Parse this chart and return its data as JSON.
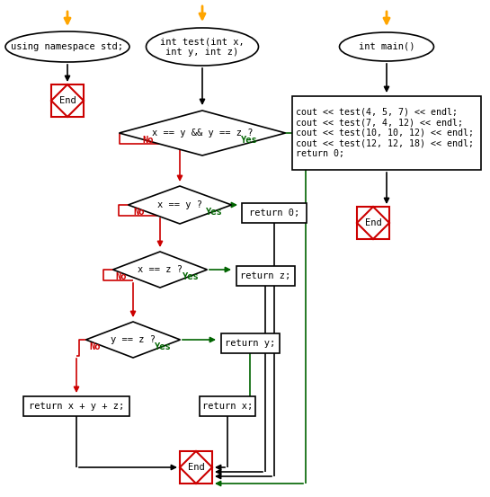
{
  "bg_color": "#ffffff",
  "arrow_color_orange": "#FFA500",
  "arrow_color_black": "#000000",
  "arrow_color_red": "#cc0000",
  "arrow_color_green": "#006400",
  "node_fill_white": "#ffffff",
  "node_border_black": "#000000",
  "end_border_red": "#cc0000",
  "text_color": "#000000",
  "label_no_color": "#cc0000",
  "label_yes_color": "#006400",
  "left_oval_text": "using namespace std;",
  "center_oval_text": "int test(int x,\nint y, int z)",
  "right_oval_text": "int main()",
  "decision1_text": "x == y && y == z ?",
  "decision2_text": "x == y ?",
  "decision3_text": "x == z ?",
  "decision4_text": "y == z ?",
  "box_return0": "return 0;",
  "box_returnz": "return z;",
  "box_returny": "return y;",
  "box_returnx": "return x;",
  "box_returnxyz": "return x + y + z;",
  "code_box_text": "cout << test(4, 5, 7) << endl;\ncout << test(7, 4, 12) << endl;\ncout << test(10, 10, 12) << endl;\ncout << test(12, 12, 18) << endl;\nreturn 0;"
}
